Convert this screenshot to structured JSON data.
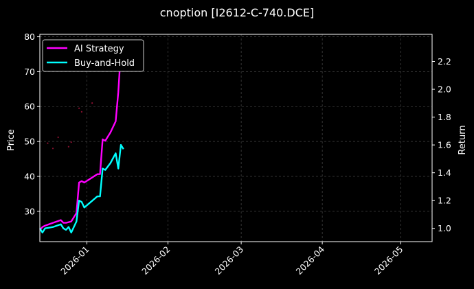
{
  "chart_data": {
    "type": "line",
    "title": "cnoption [I2612-C-740.DCE]",
    "xlabel": "",
    "ylabel": "Price",
    "y2label": "Return",
    "xlim": [
      "2025-12-14",
      "2026-05-13"
    ],
    "ylim": [
      21.3,
      80.7
    ],
    "y2lim": [
      0.905,
      2.395
    ],
    "x_ticks": [
      "2026-01",
      "2026-02",
      "2026-03",
      "2026-04",
      "2026-05"
    ],
    "y_ticks": [
      30,
      40,
      50,
      60,
      70,
      80
    ],
    "y2_ticks": [
      1.0,
      1.2,
      1.4,
      1.6,
      1.8,
      2.0,
      2.2
    ],
    "grid": true,
    "legend_position": "top-left",
    "colors": {
      "background": "#000000",
      "frame": "#ffffff",
      "grid": "#555555",
      "price_dots": "#8b1030"
    },
    "series": [
      {
        "name": "AI Strategy",
        "axis": "right",
        "color": "#ff00ff",
        "x": [
          "2025-12-14",
          "2025-12-15",
          "2025-12-16",
          "2025-12-19",
          "2025-12-22",
          "2025-12-23",
          "2025-12-24",
          "2025-12-26",
          "2025-12-28",
          "2025-12-29",
          "2025-12-30",
          "2025-12-31",
          "2026-01-05",
          "2026-01-06",
          "2026-01-07",
          "2026-01-08",
          "2026-01-10",
          "2026-01-12",
          "2026-01-13",
          "2026-01-14"
        ],
        "values": [
          0.99,
          1.01,
          1.02,
          1.04,
          1.06,
          1.04,
          1.04,
          1.05,
          1.11,
          1.33,
          1.34,
          1.33,
          1.39,
          1.39,
          1.64,
          1.63,
          1.69,
          1.77,
          1.98,
          2.28
        ]
      },
      {
        "name": "Buy-and-Hold",
        "axis": "right",
        "color": "#00ffff",
        "x": [
          "2025-12-14",
          "2025-12-15",
          "2025-12-16",
          "2025-12-19",
          "2025-12-22",
          "2025-12-23",
          "2025-12-24",
          "2025-12-25",
          "2025-12-26",
          "2025-12-28",
          "2025-12-29",
          "2025-12-30",
          "2025-12-31",
          "2026-01-05",
          "2026-01-06",
          "2026-01-07",
          "2026-01-08",
          "2026-01-10",
          "2026-01-12",
          "2026-01-13",
          "2026-01-14",
          "2026-01-15"
        ],
        "values": [
          1.0,
          0.97,
          1.0,
          1.01,
          1.03,
          1.0,
          0.99,
          1.01,
          0.97,
          1.05,
          1.2,
          1.19,
          1.15,
          1.23,
          1.23,
          1.43,
          1.42,
          1.47,
          1.54,
          1.43,
          1.6,
          1.57
        ]
      }
    ],
    "price_points": {
      "axis": "left",
      "x": [
        "2025-12-17",
        "2025-12-19",
        "2025-12-21",
        "2025-12-25",
        "2025-12-26",
        "2025-12-29",
        "2025-12-30",
        "2026-01-03"
      ],
      "values": [
        49.5,
        48.0,
        51.2,
        48.5,
        49.8,
        59.5,
        58.5,
        61.0
      ]
    }
  }
}
